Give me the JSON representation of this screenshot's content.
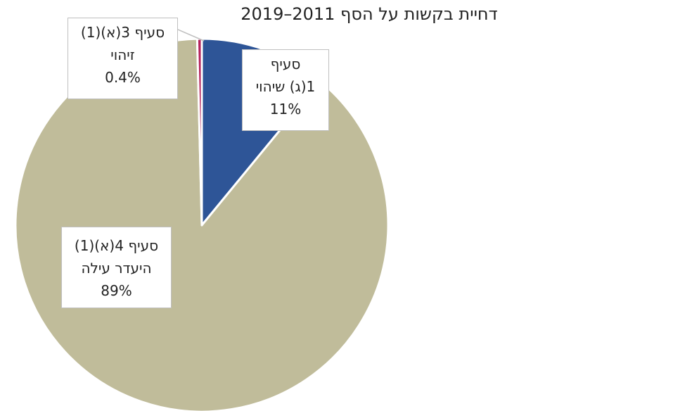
{
  "chart_data": {
    "type": "pie",
    "title": "דחיית בקשות על הסף 2011–2019",
    "slices": [
      {
        "line1": "סעיף",
        "line2": "1(ג) שיהוי",
        "pct_label": "11%",
        "value": 11,
        "color": "#2e5597"
      },
      {
        "line1": "סעיף 4(א)(1)",
        "line2": "היעדר עילה",
        "pct_label": "89%",
        "value": 89,
        "color": "#c0bc9a"
      },
      {
        "line1": "סעיף 3(א)(1)",
        "line2": "זיהוי",
        "pct_label": "0.4%",
        "value": 0.4,
        "color": "#b41f5a"
      }
    ],
    "start_angle_deg": 0,
    "direction": "clockwise",
    "legend": "none"
  }
}
